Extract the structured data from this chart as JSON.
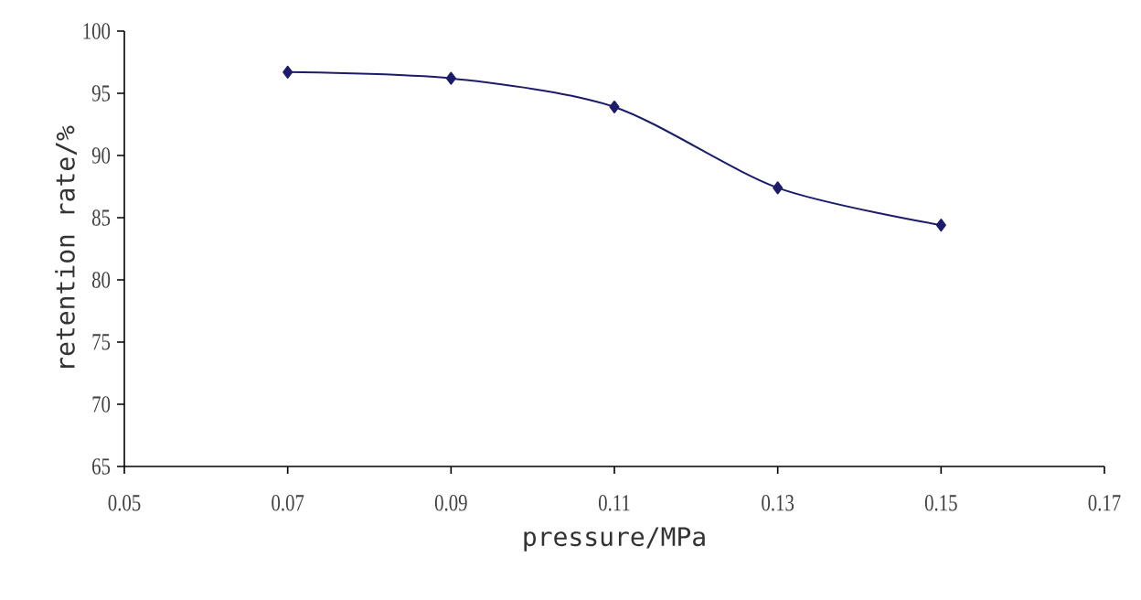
{
  "chart_data": {
    "type": "line",
    "xlabel": "pressure/MPa",
    "ylabel": "retention rate/%",
    "x": [
      0.07,
      0.09,
      0.11,
      0.13,
      0.15
    ],
    "series": [
      {
        "color": "#1c1c6b",
        "values": [
          96.7,
          96.2,
          93.9,
          87.4,
          84.4
        ]
      }
    ],
    "xlim": [
      0.05,
      0.17
    ],
    "xticks": [
      0.05,
      0.07,
      0.09,
      0.11,
      0.13,
      0.15,
      0.17
    ],
    "ylim": [
      65,
      100
    ],
    "yticks": [
      65,
      70,
      75,
      80,
      85,
      90,
      95,
      100
    ],
    "grid": false,
    "legend": false,
    "marker": "diamond",
    "line_style": "solid"
  }
}
